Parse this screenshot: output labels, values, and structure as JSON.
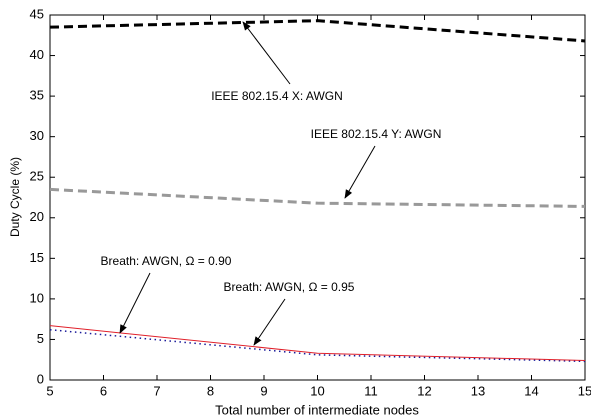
{
  "chart_data": {
    "type": "line",
    "xlabel": "Total number of intermediate nodes",
    "ylabel": "Duty Cycle (%)",
    "xlim": [
      5,
      15
    ],
    "xticks": [
      5,
      6,
      7,
      8,
      9,
      10,
      11,
      12,
      13,
      14,
      15
    ],
    "ylim": [
      0,
      45
    ],
    "yticks": [
      0,
      5,
      10,
      15,
      20,
      25,
      30,
      35,
      40,
      45
    ],
    "x": [
      5,
      10,
      15
    ],
    "series": [
      {
        "color": "#000000",
        "style": "dashed",
        "values": [
          43.5,
          44.3,
          41.8
        ]
      },
      {
        "color": "#999999",
        "style": "dashed",
        "values": [
          23.5,
          21.8,
          21.4
        ]
      },
      {
        "color": "#1a1a9a",
        "style": "dotted",
        "values": [
          6.2,
          3.1,
          2.3
        ]
      },
      {
        "color": "#e0202a",
        "style": "solid",
        "values": [
          6.7,
          3.3,
          2.4
        ]
      }
    ],
    "annotations": [
      "IEEE 802.15.4 X: AWGN",
      "IEEE 802.15.4 Y: AWGN",
      "Breath: AWGN, Ω = 0.90",
      "Breath: AWGN, Ω = 0.95"
    ]
  }
}
